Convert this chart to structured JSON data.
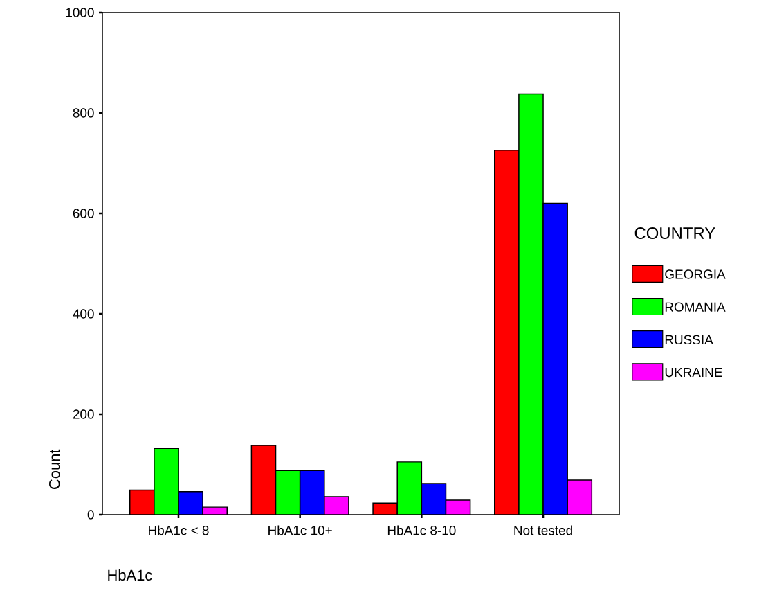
{
  "chart_data": {
    "type": "bar",
    "xlabel": "HbA1c",
    "ylabel": "Count",
    "legend_title": "COUNTRY",
    "categories": [
      "HbA1c < 8",
      "HbA1c 10+",
      "HbA1c 8-10",
      "Not tested"
    ],
    "series": [
      {
        "name": "GEORGIA",
        "color": "#ff0000",
        "values": [
          49,
          138,
          23,
          726
        ]
      },
      {
        "name": "ROMANIA",
        "color": "#00ff00",
        "values": [
          132,
          88,
          105,
          838
        ]
      },
      {
        "name": "RUSSIA",
        "color": "#0000ff",
        "values": [
          46,
          88,
          62,
          620
        ]
      },
      {
        "name": "UKRAINE",
        "color": "#ff00ff",
        "values": [
          15,
          36,
          29,
          69
        ]
      }
    ],
    "ylim": [
      0,
      1000
    ],
    "yticks": [
      0,
      200,
      400,
      600,
      800,
      1000
    ],
    "grid": false,
    "legend": "right"
  }
}
